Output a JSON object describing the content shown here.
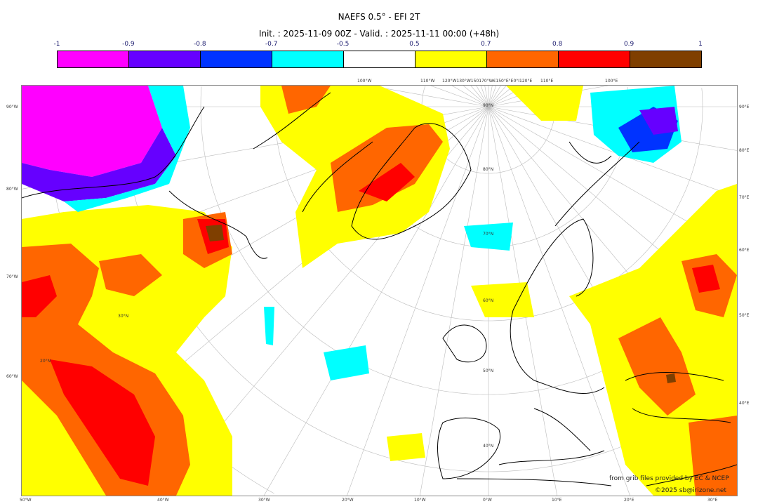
{
  "title": "NAEFS 0.5° - EFI 2T",
  "subtitle": "Init. : 2025-11-09 00Z - Valid. : 2025-11-11 00:00 (+48h)",
  "colorbar": {
    "ticks": [
      "-1",
      "-0.9",
      "-0.8",
      "-0.7",
      "-0.5",
      "0.5",
      "0.7",
      "0.8",
      "0.9",
      "1"
    ],
    "colors": [
      "#ff00ff",
      "#6600ff",
      "#0033ff",
      "#00ffff",
      "#ffffff",
      "#ffff00",
      "#ff6600",
      "#ff0000",
      "#7f3f00"
    ]
  },
  "map": {
    "top_labels": [
      "100°W",
      "110°W",
      "120°W130°W150170°W€150°E°E0°I120°E",
      "110°E",
      "100°E"
    ],
    "bottom_labels": [
      "50°W",
      "40°W",
      "30°W",
      "20°W",
      "10°W",
      "0°W",
      "10°E",
      "20°E",
      "30°E"
    ],
    "left_labels": [
      "90°W",
      "80°W",
      "70°W",
      "60°W"
    ],
    "right_labels": [
      "90°E",
      "80°E",
      "70°E",
      "60°E",
      "50°E",
      "40°E"
    ],
    "lat_labels": [
      "90°N",
      "80°N",
      "70°N",
      "60°N",
      "50°N",
      "40°N",
      "30°N",
      "20°N"
    ]
  },
  "credits": {
    "source": "from grib files provided by EC & NCEP",
    "copyright": "©2025 sb@irizone.net"
  }
}
